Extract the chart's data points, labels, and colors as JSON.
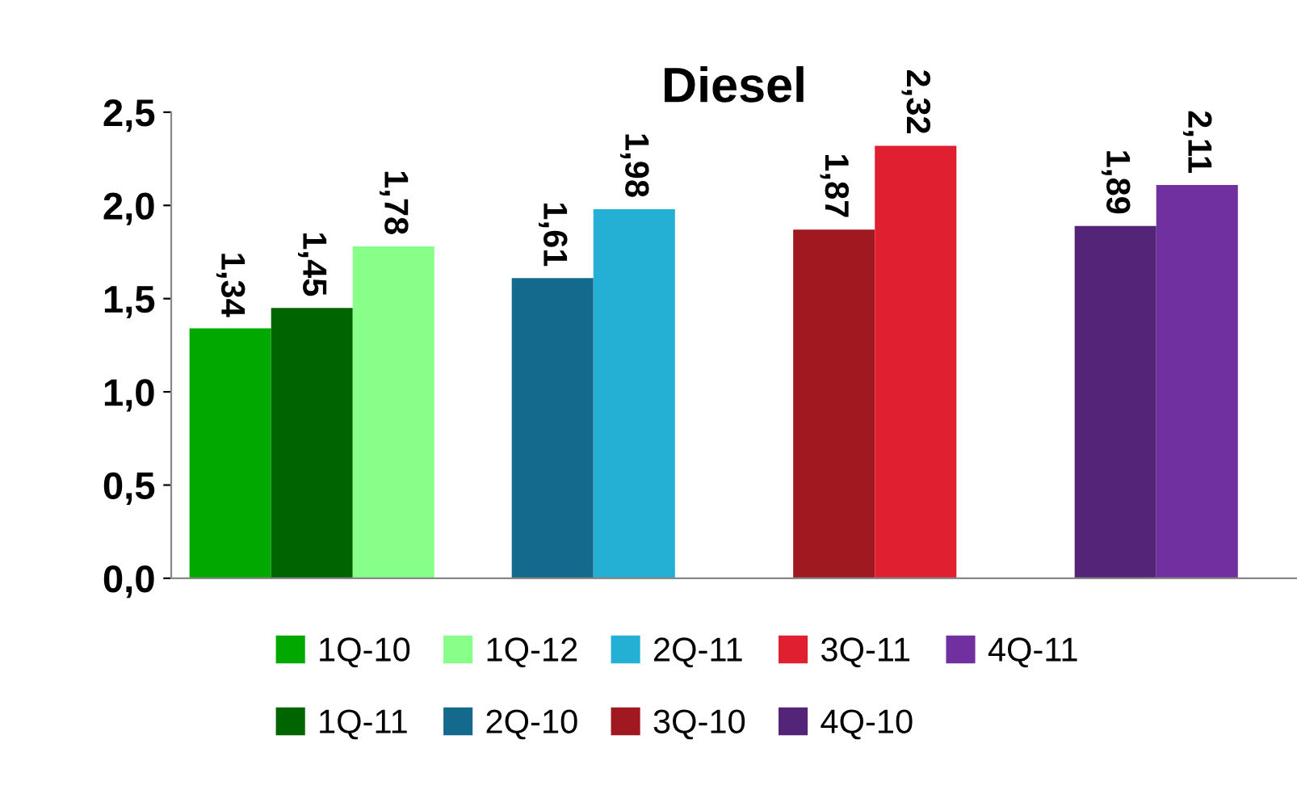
{
  "chart_data": {
    "type": "bar",
    "title": "Diesel",
    "categories": [
      null,
      null,
      null,
      null
    ],
    "series": [
      {
        "name": "1Q-10",
        "color": "#00a800",
        "values": [
          1.34,
          null,
          null,
          null
        ],
        "value_labels": [
          "1,34",
          null,
          null,
          null
        ]
      },
      {
        "name": "1Q-11",
        "color": "#006400",
        "values": [
          1.45,
          null,
          null,
          null
        ],
        "value_labels": [
          "1,45",
          null,
          null,
          null
        ]
      },
      {
        "name": "1Q-12",
        "color": "#88ff88",
        "values": [
          1.78,
          null,
          null,
          null
        ],
        "value_labels": [
          "1,78",
          null,
          null,
          null
        ]
      },
      {
        "name": "2Q-10",
        "color": "#136a8c",
        "values": [
          null,
          1.61,
          null,
          null
        ],
        "value_labels": [
          null,
          "1,61",
          null,
          null
        ]
      },
      {
        "name": "2Q-11",
        "color": "#23b0d4",
        "values": [
          null,
          1.98,
          null,
          null
        ],
        "value_labels": [
          null,
          "1,98",
          null,
          null
        ]
      },
      {
        "name": "3Q-10",
        "color": "#a01820",
        "values": [
          null,
          null,
          1.87,
          null
        ],
        "value_labels": [
          null,
          null,
          "1,87",
          null
        ]
      },
      {
        "name": "3Q-11",
        "color": "#e02030",
        "values": [
          null,
          null,
          2.32,
          null
        ],
        "value_labels": [
          null,
          null,
          "2,32",
          null
        ]
      },
      {
        "name": "4Q-10",
        "color": "#542478",
        "values": [
          null,
          null,
          null,
          1.89
        ],
        "value_labels": [
          null,
          null,
          null,
          "1,89"
        ]
      },
      {
        "name": "4Q-11",
        "color": "#7030a0",
        "values": [
          null,
          null,
          null,
          2.11
        ],
        "value_labels": [
          null,
          null,
          null,
          "2,11"
        ]
      }
    ],
    "ylim": [
      0,
      2.5
    ],
    "yticks": [
      {
        "value": 0,
        "label": "0,0"
      },
      {
        "value": 0.5,
        "label": "0,5"
      },
      {
        "value": 1,
        "label": "1,0"
      },
      {
        "value": 1.5,
        "label": "1,5"
      },
      {
        "value": 2,
        "label": "2,0"
      },
      {
        "value": 2.5,
        "label": "2,5"
      }
    ],
    "grid": false,
    "legend": "bottom"
  }
}
